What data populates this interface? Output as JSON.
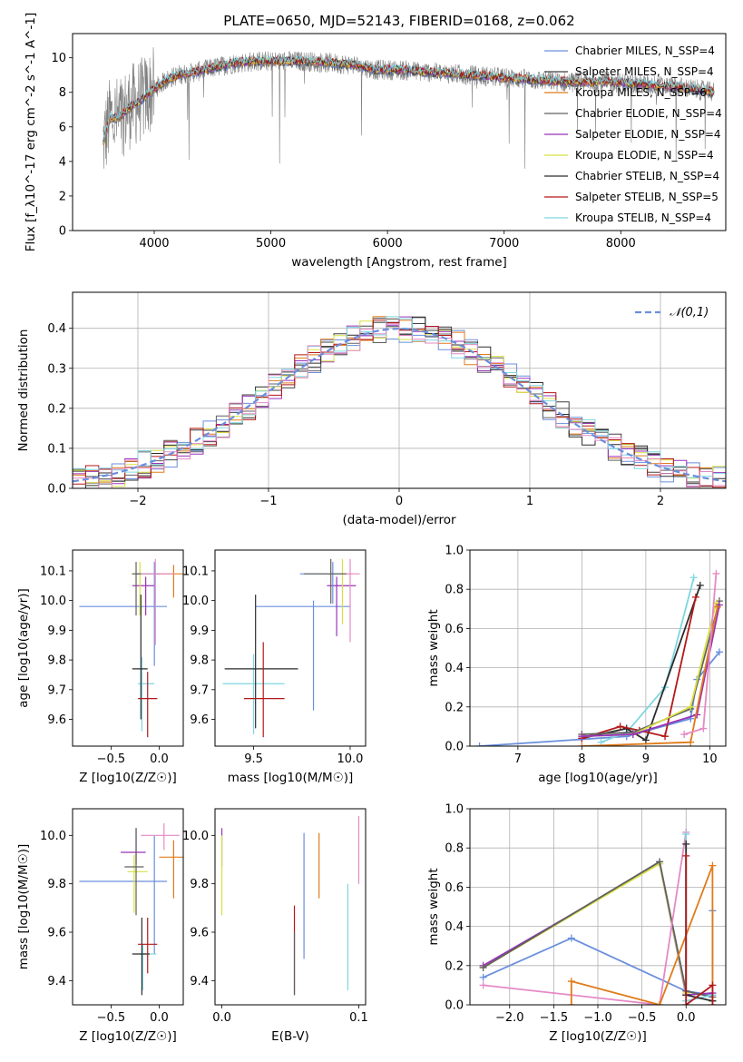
{
  "figure": {
    "title": "PLATE=0650, MJD=52143, FIBERID=0168, z=0.062"
  },
  "chart_data": [
    {
      "id": "spectrum",
      "type": "line",
      "xlabel": "wavelength [Angstrom, rest frame]",
      "ylabel": "Flux [f_λ10^-17 erg cm^-2 s^-1 A^-1]",
      "xlim": [
        3300,
        8900
      ],
      "ylim": [
        0,
        11.4
      ],
      "xticks": [
        4000,
        5000,
        6000,
        7000,
        8000
      ],
      "yticks": [
        0,
        2,
        4,
        6,
        8,
        10
      ],
      "grid": false,
      "legend_position": "top-right",
      "series": [
        {
          "name": "Chabrier MILES, N_SSP=4",
          "color": "#6a8fdc",
          "width": 1
        },
        {
          "name": "Salpeter MILES, N_SSP=4",
          "color": "#404040",
          "width": 1
        },
        {
          "name": "Kroupa MILES, N_SSP=6",
          "color": "#e07b1a",
          "width": 1
        },
        {
          "name": "Chabrier ELODIE, N_SSP=4",
          "color": "#606060",
          "width": 1
        },
        {
          "name": "Salpeter ELODIE, N_SSP=4",
          "color": "#9932b8",
          "width": 1
        },
        {
          "name": "Kroupa ELODIE, N_SSP=4",
          "color": "#d8e040",
          "width": 1
        },
        {
          "name": "Chabrier STELIB, N_SSP=4",
          "color": "#2c2c2c",
          "width": 1
        },
        {
          "name": "Salpeter STELIB, N_SSP=5",
          "color": "#b41818",
          "width": 1
        },
        {
          "name": "Kroupa STELIB, N_SSP=4",
          "color": "#7fd6e2",
          "width": 1
        }
      ],
      "continuum": {
        "x": [
          3560,
          3620,
          3700,
          3800,
          3900,
          4000,
          4100,
          4200,
          4300,
          4500,
          4700,
          4900,
          5100,
          5300,
          5500,
          5700,
          5900,
          6100,
          6300,
          6500,
          6700,
          6900,
          7100,
          7300,
          7500,
          7700,
          7900,
          8100,
          8300,
          8500,
          8800
        ],
        "y": [
          5.0,
          6.5,
          6.5,
          7.2,
          7.6,
          8.2,
          8.7,
          9.0,
          9.1,
          9.4,
          9.7,
          9.8,
          9.8,
          9.8,
          9.7,
          9.6,
          9.3,
          9.3,
          9.2,
          9.1,
          9.0,
          8.9,
          8.8,
          8.7,
          8.6,
          8.6,
          8.6,
          8.5,
          8.4,
          8.3,
          8.0
        ]
      }
    },
    {
      "id": "residuals",
      "type": "line",
      "xlabel": "(data-model)/error",
      "ylabel": "Normed distribution",
      "xlim": [
        -2.5,
        2.5
      ],
      "ylim": [
        0,
        0.49
      ],
      "xticks": [
        -2,
        -1,
        0,
        1,
        2
      ],
      "yticks": [
        0.0,
        0.1,
        0.2,
        0.3,
        0.4
      ],
      "grid": true,
      "legend_position": "top-right",
      "legend": "𝒩(0,1)",
      "gaussian": {
        "mean": 0,
        "sigma": 1,
        "color": "#6a8fdc"
      }
    },
    {
      "id": "age_vs_Z",
      "type": "scatter",
      "xlabel": "Z [log10(Z/Z☉)]",
      "ylabel": "age [log10(age/yr)]",
      "xlim": [
        -0.9,
        0.25
      ],
      "ylim": [
        9.51,
        10.17
      ],
      "xticks": [
        -0.5,
        0.0
      ],
      "yticks": [
        9.6,
        9.7,
        9.8,
        9.9,
        10.0,
        10.1
      ],
      "grid": false,
      "points": [
        {
          "x": -0.05,
          "y": 9.98,
          "xerr": [
            0.78,
            0.13
          ],
          "yerr": [
            0.2,
            0.02
          ],
          "color": "#6a8fdc"
        },
        {
          "x": -0.14,
          "y": 10.05,
          "xerr": [
            0.14,
            0.1
          ],
          "yerr": [
            0.1,
            0.03
          ],
          "color": "#9932b8"
        },
        {
          "x": -0.2,
          "y": 10.09,
          "xerr": [
            0.09,
            0.14
          ],
          "yerr": [
            0.14,
            0.04
          ],
          "color": "#d8e040"
        },
        {
          "x": 0.15,
          "y": 10.09,
          "xerr": [
            0.2,
            0.1
          ],
          "yerr": [
            0.08,
            0.03
          ],
          "color": "#e07b1a"
        },
        {
          "x": -0.05,
          "y": 10.09,
          "xerr": [
            0.2,
            0.06
          ],
          "yerr": [
            0.1,
            0.04
          ],
          "color": "#6a8fdc"
        },
        {
          "x": -0.04,
          "y": 10.09,
          "xerr": [
            0.2,
            0.2
          ],
          "yerr": [
            0.24,
            0.05
          ],
          "color": "#e589c6"
        },
        {
          "x": -0.24,
          "y": 10.09,
          "xerr": [
            0.04,
            0.05
          ],
          "yerr": [
            0.14,
            0.04
          ],
          "color": "#606060"
        },
        {
          "x": -0.18,
          "y": 9.72,
          "xerr": [
            0.04,
            0.13
          ],
          "yerr": [
            0.16,
            0.09
          ],
          "color": "#7fd6e2"
        },
        {
          "x": -0.19,
          "y": 9.77,
          "xerr": [
            0.09,
            0.07
          ],
          "yerr": [
            0.17,
            0.25
          ],
          "color": "#2c2c2c"
        },
        {
          "x": -0.12,
          "y": 9.67,
          "xerr": [
            0.1,
            0.1
          ],
          "yerr": [
            0.13,
            0.09
          ],
          "color": "#b41818"
        }
      ]
    },
    {
      "id": "age_vs_mass",
      "type": "scatter",
      "xlabel": "mass [log10(M/M☉)]",
      "ylabel": "",
      "xlim": [
        9.3,
        10.08
      ],
      "ylim": [
        9.51,
        10.17
      ],
      "xticks": [
        9.5,
        10.0
      ],
      "yticks": [
        9.6,
        9.7,
        9.8,
        9.9,
        10.0,
        10.1
      ],
      "grid": false,
      "points": [
        {
          "x": 9.81,
          "y": 9.98,
          "xerr": [
            0.3,
            0.19
          ],
          "yerr": [
            0.35,
            0.02
          ],
          "color": "#6a8fdc"
        },
        {
          "x": 9.93,
          "y": 10.05,
          "xerr": [
            0.05,
            0.1
          ],
          "yerr": [
            0.17,
            0.03
          ],
          "color": "#9932b8"
        },
        {
          "x": 9.96,
          "y": 10.09,
          "xerr": [
            0.11,
            0.05
          ],
          "yerr": [
            0.17,
            0.05
          ],
          "color": "#d8e040"
        },
        {
          "x": 9.91,
          "y": 10.09,
          "xerr": [
            0.17,
            0.07
          ],
          "yerr": [
            0.1,
            0.04
          ],
          "color": "#6a8fdc"
        },
        {
          "x": 10.0,
          "y": 10.09,
          "xerr": [
            0.04,
            0.05
          ],
          "yerr": [
            0.23,
            0.05
          ],
          "color": "#e589c6"
        },
        {
          "x": 9.9,
          "y": 10.09,
          "xerr": [
            0.14,
            0.08
          ],
          "yerr": [
            0.1,
            0.05
          ],
          "color": "#606060"
        },
        {
          "x": 9.5,
          "y": 9.72,
          "xerr": [
            0.16,
            0.16
          ],
          "yerr": [
            0.17,
            0.1
          ],
          "color": "#7fd6e2"
        },
        {
          "x": 9.51,
          "y": 9.77,
          "xerr": [
            0.16,
            0.22
          ],
          "yerr": [
            0.2,
            0.25
          ],
          "color": "#2c2c2c"
        },
        {
          "x": 9.55,
          "y": 9.67,
          "xerr": [
            0.1,
            0.11
          ],
          "yerr": [
            0.13,
            0.19
          ],
          "color": "#b41818"
        }
      ]
    },
    {
      "id": "weight_vs_age",
      "type": "line",
      "xlabel": "age [log10(age/yr)]",
      "ylabel": "mass weight",
      "xlim": [
        6.25,
        10.25
      ],
      "ylim": [
        0,
        1.0
      ],
      "xticks": [
        7,
        8,
        9,
        10
      ],
      "yticks": [
        0.0,
        0.2,
        0.4,
        0.6,
        0.8,
        1.0
      ],
      "grid": true,
      "series": [
        {
          "color": "#6a8fdc",
          "x": [
            6.4,
            8.7,
            9.7,
            9.8,
            10.15
          ],
          "y": [
            0.0,
            0.05,
            0.14,
            0.34,
            0.48
          ]
        },
        {
          "color": "#7fd6e2",
          "x": [
            8.3,
            8.7,
            9.3,
            9.75
          ],
          "y": [
            0.02,
            0.07,
            0.3,
            0.86
          ]
        },
        {
          "color": "#2c2c2c",
          "x": [
            8.0,
            8.7,
            9.0,
            9.85
          ],
          "y": [
            0.04,
            0.09,
            0.03,
            0.82
          ]
        },
        {
          "color": "#b41818",
          "x": [
            8.0,
            8.6,
            8.9,
            9.3,
            9.78
          ],
          "y": [
            0.04,
            0.1,
            0.08,
            0.05,
            0.76
          ]
        },
        {
          "color": "#606060",
          "x": [
            8.0,
            8.8,
            9.7,
            10.15
          ],
          "y": [
            0.06,
            0.07,
            0.19,
            0.74
          ]
        },
        {
          "color": "#d8e040",
          "x": [
            8.0,
            8.8,
            9.7,
            10.1
          ],
          "y": [
            0.05,
            0.06,
            0.2,
            0.73
          ]
        },
        {
          "color": "#9932b8",
          "x": [
            8.0,
            8.8,
            9.8,
            10.15
          ],
          "y": [
            0.05,
            0.06,
            0.16,
            0.72
          ]
        },
        {
          "color": "#e07b1a",
          "x": [
            8.0,
            9.7,
            10.12
          ],
          "y": [
            0.0,
            0.02,
            0.71
          ]
        },
        {
          "color": "#e589c6",
          "x": [
            9.6,
            9.9,
            10.1
          ],
          "y": [
            0.06,
            0.09,
            0.88
          ]
        }
      ]
    },
    {
      "id": "mass_vs_Z",
      "type": "scatter",
      "xlabel": "Z [log10(Z/Z☉)]",
      "ylabel": "mass [log10(M/M☉)]",
      "xlim": [
        -0.9,
        0.25
      ],
      "ylim": [
        9.3,
        10.11
      ],
      "xticks": [
        -0.5,
        0.0
      ],
      "yticks": [
        9.4,
        9.6,
        9.8,
        10.0
      ],
      "grid": false,
      "points": [
        {
          "x": -0.05,
          "y": 9.81,
          "xerr": [
            0.78,
            0.13
          ],
          "yerr": [
            0.3,
            0.19
          ],
          "color": "#6a8fdc"
        },
        {
          "x": -0.24,
          "y": 9.93,
          "xerr": [
            0.16,
            0.1
          ],
          "yerr": [
            0.05,
            0.1
          ],
          "color": "#9932b8"
        },
        {
          "x": -0.26,
          "y": 9.85,
          "xerr": [
            0.07,
            0.14
          ],
          "yerr": [
            0.17,
            0.07
          ],
          "color": "#d8e040"
        },
        {
          "x": 0.15,
          "y": 9.91,
          "xerr": [
            0.15,
            0.1
          ],
          "yerr": [
            0.17,
            0.07
          ],
          "color": "#e07b1a"
        },
        {
          "x": 0.05,
          "y": 10.0,
          "xerr": [
            0.24,
            0.16
          ],
          "yerr": [
            0.06,
            0.05
          ],
          "color": "#e589c6"
        },
        {
          "x": -0.24,
          "y": 9.87,
          "xerr": [
            0.12,
            0.08
          ],
          "yerr": [
            0.2,
            0.16
          ],
          "color": "#606060"
        },
        {
          "x": -0.17,
          "y": 9.51,
          "xerr": [
            0.04,
            0.14
          ],
          "yerr": [
            0.15,
            0.04
          ],
          "color": "#7fd6e2"
        },
        {
          "x": -0.18,
          "y": 9.51,
          "xerr": [
            0.1,
            0.08
          ],
          "yerr": [
            0.17,
            0.15
          ],
          "color": "#2c2c2c"
        },
        {
          "x": -0.12,
          "y": 9.55,
          "xerr": [
            0.1,
            0.1
          ],
          "yerr": [
            0.12,
            0.11
          ],
          "color": "#b41818"
        }
      ]
    },
    {
      "id": "mass_vs_ebv",
      "type": "scatter",
      "xlabel": "E(B-V)",
      "ylabel": "",
      "xlim": [
        -0.005,
        0.105
      ],
      "ylim": [
        9.3,
        10.11
      ],
      "xticks": [
        0.0,
        0.1
      ],
      "yticks": [
        9.4,
        9.6,
        9.8,
        10.0
      ],
      "grid": false,
      "points": [
        {
          "x": 0.0,
          "y": 9.93,
          "yerr": [
            0.06,
            0.1
          ],
          "color": "#9932b8"
        },
        {
          "x": 0.0,
          "y": 9.9,
          "yerr": [
            0.23,
            0.1
          ],
          "color": "#d8e040"
        },
        {
          "x": 0.053,
          "y": 9.57,
          "yerr": [
            0.23,
            0.14
          ],
          "color": "#b41818"
        },
        {
          "x": 0.053,
          "y": 9.5,
          "yerr": [
            0.16,
            0.1
          ],
          "color": "#606060"
        },
        {
          "x": 0.06,
          "y": 9.73,
          "yerr": [
            0.24,
            0.28
          ],
          "color": "#6a8fdc"
        },
        {
          "x": 0.071,
          "y": 9.87,
          "yerr": [
            0.13,
            0.14
          ],
          "color": "#e07b1a"
        },
        {
          "x": 0.092,
          "y": 9.6,
          "yerr": [
            0.24,
            0.2
          ],
          "color": "#7fd6e2"
        },
        {
          "x": 0.1,
          "y": 10.0,
          "yerr": [
            0.2,
            0.08
          ],
          "color": "#e589c6"
        }
      ]
    },
    {
      "id": "weight_vs_Z",
      "type": "line",
      "xlabel": "Z [log10(Z/Z☉)]",
      "ylabel": "mass weight",
      "xlim": [
        -2.45,
        0.45
      ],
      "ylim": [
        0,
        1.0
      ],
      "xticks": [
        -2.0,
        -1.5,
        -1.0,
        -0.5,
        0.0
      ],
      "yticks": [
        0.0,
        0.2,
        0.4,
        0.6,
        0.8,
        1.0
      ],
      "grid": true,
      "series": [
        {
          "color": "#6a8fdc",
          "x": [
            -2.3,
            -1.3,
            0.0,
            0.3,
            0.3
          ],
          "y": [
            0.14,
            0.34,
            0.07,
            0.05,
            0.48
          ]
        },
        {
          "color": "#9932b8",
          "x": [
            -2.3,
            -0.3,
            0.0,
            0.3
          ],
          "y": [
            0.2,
            0.72,
            0.05,
            0.06
          ]
        },
        {
          "color": "#d8e040",
          "x": [
            -2.3,
            -0.3,
            0.0
          ],
          "y": [
            0.19,
            0.72,
            0.06
          ]
        },
        {
          "color": "#606060",
          "x": [
            -2.3,
            -0.3,
            0.0,
            0.3
          ],
          "y": [
            0.19,
            0.73,
            0.07,
            0.04
          ]
        },
        {
          "color": "#e589c6",
          "x": [
            -2.3,
            -0.3,
            0.0
          ],
          "y": [
            0.1,
            0.0,
            0.88
          ]
        },
        {
          "color": "#e07b1a",
          "x": [
            -1.3,
            -1.3,
            -0.3,
            0.3,
            0.3
          ],
          "y": [
            0.0,
            0.12,
            0.0,
            0.71,
            0.02
          ]
        },
        {
          "color": "#7fd6e2",
          "x": [
            0.0,
            0.0,
            0.3
          ],
          "y": [
            0.87,
            0.02,
            0.05
          ]
        },
        {
          "color": "#2c2c2c",
          "x": [
            0.0,
            0.0,
            0.3
          ],
          "y": [
            0.82,
            0.05,
            0.02
          ]
        },
        {
          "color": "#b41818",
          "x": [
            0.0,
            0.0,
            0.3,
            0.3
          ],
          "y": [
            0.76,
            0.0,
            0.1,
            0.0
          ]
        }
      ]
    }
  ]
}
